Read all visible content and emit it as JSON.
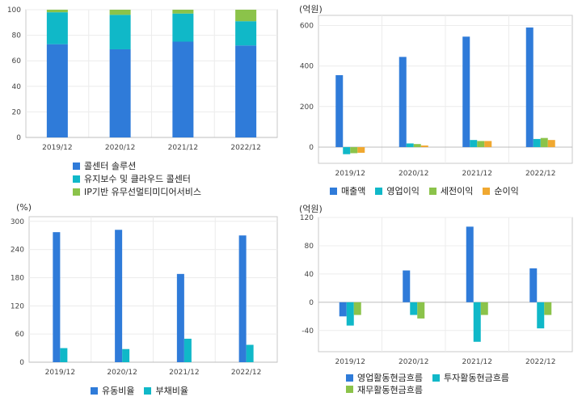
{
  "chart_data": [
    {
      "id": "composition",
      "type": "bar",
      "stacked": true,
      "unit": "",
      "categories": [
        "2019/12",
        "2020/12",
        "2021/12",
        "2022/12"
      ],
      "series": [
        {
          "name": "콜센터 솔루션",
          "color": "#2f7bd9",
          "values": [
            73,
            69,
            75,
            72
          ]
        },
        {
          "name": "유지보수 및 클라우드 콜센터",
          "color": "#10b8c8",
          "values": [
            25,
            27,
            22,
            19
          ]
        },
        {
          "name": "IP기반 유무선멀티미디어서비스",
          "color": "#8bc34a",
          "values": [
            2,
            4,
            3,
            9
          ]
        }
      ],
      "ylim": [
        0,
        100
      ],
      "yticks": [
        0,
        20,
        40,
        60,
        80,
        100
      ],
      "grid": true,
      "legend": "bottom"
    },
    {
      "id": "income",
      "type": "bar",
      "unit": "(억원)",
      "categories": [
        "2019/12",
        "2020/12",
        "2021/12",
        "2022/12"
      ],
      "series": [
        {
          "name": "매출액",
          "color": "#2f7bd9",
          "values": [
            355,
            445,
            545,
            590
          ]
        },
        {
          "name": "영업이익",
          "color": "#10b8c8",
          "values": [
            -35,
            18,
            35,
            40
          ]
        },
        {
          "name": "세전이익",
          "color": "#8bc34a",
          "values": [
            -30,
            15,
            30,
            45
          ]
        },
        {
          "name": "순이익",
          "color": "#f0a830",
          "values": [
            -28,
            8,
            30,
            35
          ]
        }
      ],
      "ylim": [
        -80,
        650
      ],
      "yticks": [
        0,
        200,
        400,
        600
      ],
      "grid": true,
      "legend": "bottom"
    },
    {
      "id": "ratios",
      "type": "bar",
      "unit": "(%)",
      "categories": [
        "2019/12",
        "2020/12",
        "2021/12",
        "2022/12"
      ],
      "series": [
        {
          "name": "유동비율",
          "color": "#2f7bd9",
          "values": [
            277,
            282,
            188,
            270
          ]
        },
        {
          "name": "부채비율",
          "color": "#10b8c8",
          "values": [
            30,
            28,
            50,
            37
          ]
        }
      ],
      "ylim": [
        0,
        310
      ],
      "yticks": [
        0,
        60,
        120,
        180,
        240,
        300
      ],
      "grid": true,
      "legend": "bottom"
    },
    {
      "id": "cashflow",
      "type": "bar",
      "unit": "(억원)",
      "categories": [
        "2019/12",
        "2020/12",
        "2021/12",
        "2022/12"
      ],
      "series": [
        {
          "name": "영업활동현금흐름",
          "color": "#2f7bd9",
          "values": [
            -20,
            45,
            107,
            48
          ]
        },
        {
          "name": "투자활동현금흐름",
          "color": "#10b8c8",
          "values": [
            -33,
            -18,
            -56,
            -37
          ]
        },
        {
          "name": "재무활동현금흐름",
          "color": "#8bc34a",
          "values": [
            -18,
            -23,
            -18,
            -18
          ]
        }
      ],
      "ylim": [
        -70,
        120
      ],
      "yticks": [
        -40,
        0,
        40,
        80,
        120
      ],
      "grid": true,
      "legend": "bottom"
    }
  ]
}
